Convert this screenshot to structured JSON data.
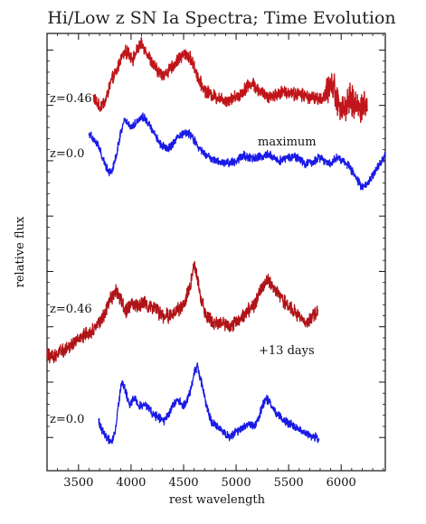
{
  "chart_data": {
    "type": "line",
    "title": "Hi/Low z SN Ia Spectra; Time Evolution",
    "xlabel": "rest wavelength",
    "ylabel": "relative flux",
    "xlim": [
      3200,
      6420
    ],
    "xticks": [
      3500,
      4000,
      4500,
      5000,
      5500,
      6000
    ],
    "y_tick_labels": false,
    "grid": false,
    "legend": "none",
    "annotations": [
      {
        "text": "z=0.46",
        "attached_to": "upper-red"
      },
      {
        "text": "z=0.0",
        "attached_to": "upper-blue"
      },
      {
        "text": "maximum",
        "attached_to": "upper-panel"
      },
      {
        "text": "z=0.46",
        "attached_to": "lower-red"
      },
      {
        "text": "+13 days",
        "attached_to": "lower-panel"
      },
      {
        "text": "z=0.0",
        "attached_to": "lower-blue"
      }
    ],
    "series": [
      {
        "id": "max-hi-z",
        "color": "#c0151a",
        "noise": 0.045,
        "lw": 1.4,
        "x": [
          3640,
          3700,
          3760,
          3810,
          3860,
          3900,
          3940,
          3980,
          4020,
          4070,
          4100,
          4140,
          4200,
          4260,
          4320,
          4400,
          4460,
          4520,
          4560,
          4600,
          4650,
          4700,
          4760,
          4800,
          4860,
          4920,
          4980,
          5040,
          5100,
          5160,
          5200,
          5260,
          5320,
          5380,
          5440,
          5500,
          5560,
          5620,
          5680,
          5740,
          5800,
          5860,
          5900,
          5940,
          5980,
          6020,
          6080,
          6140,
          6200,
          6250
        ],
        "y": [
          0.58,
          0.48,
          0.55,
          0.72,
          0.8,
          0.92,
          0.98,
          0.97,
          0.92,
          1.02,
          1.05,
          1.0,
          0.88,
          0.8,
          0.78,
          0.85,
          0.93,
          0.97,
          0.93,
          0.85,
          0.72,
          0.64,
          0.6,
          0.58,
          0.56,
          0.55,
          0.57,
          0.6,
          0.67,
          0.7,
          0.65,
          0.6,
          0.58,
          0.6,
          0.62,
          0.62,
          0.6,
          0.6,
          0.58,
          0.57,
          0.55,
          0.6,
          0.72,
          0.64,
          0.5,
          0.46,
          0.55,
          0.5,
          0.48,
          0.5
        ]
      },
      {
        "id": "max-low-z",
        "color": "#1a1ae6",
        "noise": 0.03,
        "lw": 1.3,
        "x": [
          3600,
          3640,
          3680,
          3720,
          3760,
          3790,
          3820,
          3860,
          3900,
          3940,
          4000,
          4060,
          4110,
          4160,
          4220,
          4280,
          4340,
          4400,
          4460,
          4520,
          4580,
          4640,
          4700,
          4760,
          4820,
          4880,
          4940,
          5000,
          5060,
          5120,
          5180,
          5240,
          5300,
          5360,
          5420,
          5480,
          5540,
          5600,
          5660,
          5720,
          5780,
          5840,
          5900,
          5960,
          6020,
          6080,
          6140,
          6200,
          6260,
          6320,
          6380,
          6420
        ],
        "y": [
          0.25,
          0.2,
          0.15,
          0.05,
          -0.05,
          -0.1,
          -0.08,
          0.05,
          0.25,
          0.38,
          0.3,
          0.36,
          0.4,
          0.35,
          0.25,
          0.15,
          0.1,
          0.15,
          0.22,
          0.26,
          0.22,
          0.12,
          0.06,
          0.02,
          0.0,
          -0.02,
          -0.02,
          0.0,
          0.05,
          0.03,
          0.02,
          0.04,
          0.06,
          0.03,
          0.0,
          0.03,
          0.04,
          0.02,
          -0.03,
          -0.02,
          0.03,
          0.0,
          -0.02,
          0.03,
          0.0,
          -0.05,
          -0.15,
          -0.25,
          -0.2,
          -0.1,
          -0.02,
          0.05
        ]
      },
      {
        "id": "day13-hi-z",
        "color": "#b01418",
        "noise": 0.05,
        "lw": 1.3,
        "x": [
          3200,
          3260,
          3320,
          3380,
          3440,
          3500,
          3560,
          3620,
          3680,
          3740,
          3800,
          3860,
          3900,
          3950,
          4000,
          4060,
          4120,
          4180,
          4240,
          4300,
          4360,
          4420,
          4480,
          4520,
          4560,
          4600,
          4640,
          4680,
          4720,
          4760,
          4820,
          4880,
          4940,
          5000,
          5060,
          5120,
          5180,
          5240,
          5300,
          5360,
          5420,
          5480,
          5540,
          5600,
          5660,
          5720,
          5780
        ],
        "y": [
          -1.75,
          -1.78,
          -1.72,
          -1.7,
          -1.65,
          -1.62,
          -1.58,
          -1.55,
          -1.48,
          -1.4,
          -1.25,
          -1.18,
          -1.25,
          -1.35,
          -1.3,
          -1.32,
          -1.28,
          -1.32,
          -1.35,
          -1.4,
          -1.4,
          -1.38,
          -1.32,
          -1.25,
          -1.15,
          -0.95,
          -1.1,
          -1.3,
          -1.4,
          -1.45,
          -1.48,
          -1.46,
          -1.5,
          -1.45,
          -1.4,
          -1.35,
          -1.3,
          -1.15,
          -1.08,
          -1.15,
          -1.22,
          -1.3,
          -1.35,
          -1.4,
          -1.48,
          -1.42,
          -1.35
        ]
      },
      {
        "id": "day13-low-z",
        "color": "#1a1ae6",
        "noise": 0.03,
        "lw": 1.3,
        "x": [
          3690,
          3730,
          3770,
          3810,
          3850,
          3880,
          3910,
          3940,
          3980,
          4020,
          4060,
          4100,
          4140,
          4200,
          4260,
          4320,
          4380,
          4440,
          4500,
          4560,
          4600,
          4630,
          4670,
          4710,
          4760,
          4820,
          4880,
          4940,
          5000,
          5060,
          5120,
          5180,
          5240,
          5280,
          5320,
          5360,
          5400,
          5460,
          5520,
          5580,
          5640,
          5700,
          5760,
          5790
        ],
        "y": [
          -2.35,
          -2.45,
          -2.5,
          -2.55,
          -2.45,
          -2.2,
          -2.0,
          -2.05,
          -2.2,
          -2.15,
          -2.18,
          -2.22,
          -2.2,
          -2.28,
          -2.32,
          -2.35,
          -2.25,
          -2.15,
          -2.22,
          -2.1,
          -1.92,
          -1.85,
          -2.0,
          -2.18,
          -2.35,
          -2.4,
          -2.45,
          -2.5,
          -2.45,
          -2.42,
          -2.38,
          -2.4,
          -2.25,
          -2.15,
          -2.18,
          -2.25,
          -2.3,
          -2.35,
          -2.38,
          -2.42,
          -2.45,
          -2.48,
          -2.5,
          -2.52
        ]
      }
    ]
  }
}
